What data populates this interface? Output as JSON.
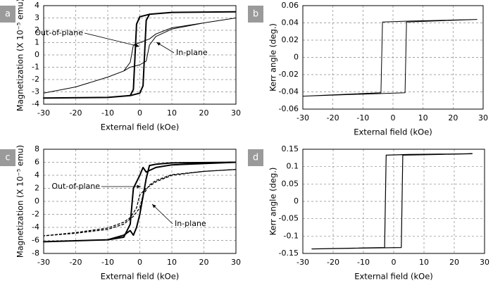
{
  "chart_data": [
    {
      "type": "line",
      "label": "a",
      "x_label": "External field (kOe)",
      "y_label": "Magnetization (X 10⁻⁵ emu)",
      "xlim": [
        -30,
        30
      ],
      "ylim": [
        -4,
        4
      ],
      "xticks": [
        -30,
        -20,
        -10,
        0,
        10,
        20,
        30
      ],
      "yticks": [
        -4,
        -3,
        -2,
        -1,
        0,
        1,
        2,
        3,
        4
      ],
      "grid": true,
      "series": [
        {
          "name": "Out-of-plane",
          "color": "#000",
          "style": "solid",
          "width": 2,
          "x": [
            30,
            10,
            3,
            0,
            -1,
            -2,
            -3,
            -10,
            -30,
            -10,
            -3,
            0,
            1,
            2,
            3,
            10,
            30
          ],
          "values": [
            3.5,
            3.45,
            3.3,
            3.1,
            2.5,
            -2.8,
            -3.3,
            -3.45,
            -3.5,
            -3.45,
            -3.3,
            -3.1,
            -2.5,
            2.8,
            3.3,
            3.45,
            3.5
          ]
        },
        {
          "name": "In-plane",
          "color": "#000",
          "style": "solid",
          "width": 1,
          "x": [
            30,
            20,
            10,
            5,
            3,
            0,
            -2,
            -3,
            -5,
            -10,
            -20,
            -30,
            -20,
            -10,
            -5,
            -3,
            0,
            2,
            3,
            5,
            10,
            20,
            30
          ],
          "values": [
            3.0,
            2.6,
            2.2,
            1.7,
            1.3,
            1.0,
            0.8,
            -0.6,
            -1.3,
            -1.8,
            -2.6,
            -3.1,
            -2.6,
            -1.8,
            -1.3,
            -1.0,
            -0.8,
            -0.5,
            0.8,
            1.5,
            2.1,
            2.6,
            3.0
          ]
        }
      ]
    },
    {
      "type": "line",
      "label": "b",
      "x_label": "External field (kOe)",
      "y_label": "Kerr angle (deg.)",
      "xlim": [
        -30,
        30
      ],
      "ylim": [
        -0.06,
        0.06
      ],
      "xticks": [
        -30,
        -20,
        -10,
        0,
        10,
        20,
        30
      ],
      "yticks": [
        -0.06,
        -0.04,
        -0.02,
        0,
        0.02,
        0.04,
        0.06
      ],
      "grid": true,
      "series": [
        {
          "name": null,
          "color": "#000",
          "style": "solid",
          "width": 1,
          "x": [
            28,
            5,
            -3.5,
            -4,
            -30,
            4,
            4.5,
            28
          ],
          "values": [
            0.044,
            0.042,
            0.041,
            -0.041,
            -0.045,
            -0.041,
            0.041,
            0.044
          ]
        }
      ]
    },
    {
      "type": "line",
      "label": "c",
      "x_label": "External field (kOe)",
      "y_label": "Magnetization (X 10⁻⁵ emu)",
      "xlim": [
        -30,
        30
      ],
      "ylim": [
        -8,
        8
      ],
      "xticks": [
        -30,
        -20,
        -10,
        0,
        10,
        20,
        30
      ],
      "yticks": [
        -8,
        -6,
        -4,
        -2,
        0,
        2,
        4,
        6,
        8
      ],
      "grid": true,
      "series": [
        {
          "name": "Out-of-plane",
          "color": "#000",
          "style": "solid",
          "width": 2,
          "x": [
            30,
            10,
            5,
            2,
            1,
            0,
            -2,
            -3,
            -5,
            -10,
            -30,
            -10,
            -5,
            -3,
            -2,
            -1,
            0,
            2,
            3,
            5,
            10,
            30
          ],
          "values": [
            6,
            5.6,
            5.2,
            4.5,
            5.2,
            4,
            2,
            -3.5,
            -5.5,
            -5.9,
            -6.2,
            -5.9,
            -5.2,
            -4.5,
            -5.2,
            -4,
            -2,
            3.5,
            5.5,
            5.7,
            5.9,
            6
          ]
        },
        {
          "name": "In-plane",
          "color": "#000",
          "style": "dashed",
          "width": 1.3,
          "x": [
            30,
            20,
            10,
            5,
            2,
            0,
            -1,
            -3,
            -5,
            -10,
            -20,
            -30,
            -20,
            -10,
            -5,
            -2,
            0,
            1,
            3,
            5,
            10,
            20,
            30
          ],
          "values": [
            4.9,
            4.6,
            4,
            3,
            2,
            1,
            -1,
            -2.5,
            -3.2,
            -4.1,
            -4.8,
            -5.3,
            -4.9,
            -4.3,
            -3.5,
            -2.3,
            -1,
            1,
            2.5,
            3.2,
            4.1,
            4.6,
            4.9
          ]
        }
      ]
    },
    {
      "type": "line",
      "label": "d",
      "x_label": "External field (kOe)",
      "y_label": "Kerr angle (deg.)",
      "xlim": [
        -30,
        30
      ],
      "ylim": [
        -0.15,
        0.15
      ],
      "xticks": [
        -30,
        -20,
        -10,
        0,
        10,
        20,
        30
      ],
      "yticks": [
        -0.15,
        -0.1,
        -0.05,
        0,
        0.05,
        0.1,
        0.15
      ],
      "grid": true,
      "series": [
        {
          "name": null,
          "color": "#000",
          "style": "solid",
          "width": 1.2,
          "x": [
            26,
            5,
            -2.5,
            -3,
            -27,
            2.5,
            3,
            26
          ],
          "values": [
            0.137,
            0.135,
            0.133,
            -0.133,
            -0.137,
            -0.133,
            0.133,
            0.137
          ]
        }
      ]
    }
  ]
}
